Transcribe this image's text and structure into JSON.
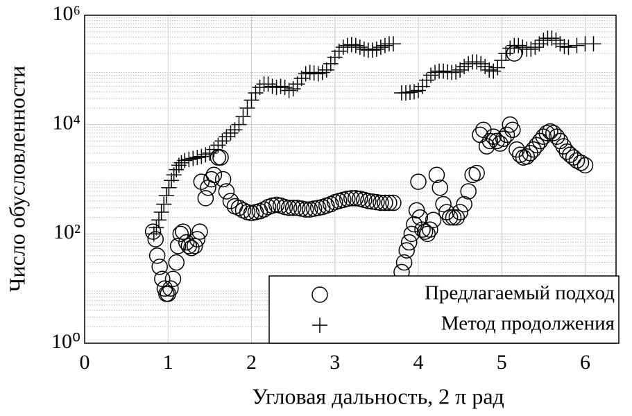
{
  "chart_data": {
    "type": "scatter",
    "xlabel": "Угловая дальность, 2 π рад",
    "ylabel": "Число обусловленности",
    "xlim": [
      0,
      6.37
    ],
    "ylim": [
      1,
      1000000
    ],
    "log_y": true,
    "grid": true,
    "minor_grid": true,
    "xticks": [
      0,
      1,
      2,
      3,
      4,
      5,
      6
    ],
    "yticks": [
      {
        "value": 1,
        "label": "10⁰"
      },
      {
        "value": 100,
        "label": "10²"
      },
      {
        "value": 10000,
        "label": "10⁴"
      },
      {
        "value": 1000000,
        "label": "10⁶"
      }
    ],
    "legend": "lower right",
    "series": [
      {
        "name": "Предлагаемый подход",
        "marker": "circle",
        "color": "#000000",
        "x": [
          0.82,
          0.85,
          0.87,
          0.9,
          0.93,
          0.96,
          0.98,
          1.0,
          1.03,
          1.06,
          1.1,
          1.12,
          1.15,
          1.18,
          1.22,
          1.25,
          1.28,
          1.32,
          1.35,
          1.38,
          1.4,
          1.45,
          1.48,
          1.52,
          1.55,
          1.6,
          1.63,
          1.66,
          1.7,
          1.75,
          1.8,
          1.85,
          1.9,
          1.95,
          2.0,
          2.05,
          2.1,
          2.15,
          2.2,
          2.25,
          2.3,
          2.35,
          2.4,
          2.45,
          2.5,
          2.55,
          2.6,
          2.65,
          2.7,
          2.75,
          2.8,
          2.85,
          2.9,
          2.95,
          3.0,
          3.05,
          3.1,
          3.15,
          3.2,
          3.25,
          3.3,
          3.35,
          3.4,
          3.45,
          3.5,
          3.55,
          3.6,
          3.65,
          3.7,
          3.8,
          3.83,
          3.86,
          3.89,
          3.92,
          3.95,
          3.98,
          4.0,
          4.02,
          4.05,
          4.08,
          4.11,
          4.14,
          4.18,
          4.22,
          4.26,
          4.3,
          4.34,
          4.38,
          4.42,
          4.46,
          4.5,
          4.55,
          4.6,
          4.65,
          4.7,
          4.74,
          4.78,
          4.82,
          4.86,
          4.9,
          4.94,
          4.98,
          5.02,
          5.06,
          5.1,
          5.13,
          5.15,
          5.18,
          5.22,
          5.26,
          5.3,
          5.34,
          5.38,
          5.42,
          5.46,
          5.5,
          5.54,
          5.58,
          5.62,
          5.66,
          5.7,
          5.74,
          5.78,
          5.82,
          5.86,
          5.9,
          5.95,
          6.0
        ],
        "values": [
          110,
          80,
          40,
          25,
          15,
          10,
          8,
          8,
          10,
          15,
          30,
          60,
          100,
          110,
          70,
          60,
          55,
          60,
          80,
          110,
          900,
          450,
          700,
          1000,
          1200,
          2500,
          2500,
          1000,
          600,
          400,
          320,
          300,
          270,
          250,
          240,
          250,
          260,
          280,
          310,
          330,
          340,
          330,
          310,
          300,
          300,
          300,
          290,
          280,
          280,
          290,
          300,
          310,
          330,
          350,
          380,
          400,
          420,
          440,
          450,
          450,
          440,
          420,
          400,
          390,
          380,
          370,
          370,
          370,
          370,
          20,
          30,
          50,
          70,
          100,
          150,
          270,
          900,
          200,
          120,
          110,
          100,
          120,
          180,
          1200,
          700,
          350,
          250,
          200,
          200,
          200,
          250,
          350,
          600,
          1200,
          1300,
          6500,
          8000,
          4000,
          5000,
          6000,
          5000,
          4500,
          5500,
          6500,
          10000,
          8000,
          200000,
          3500,
          2800,
          2500,
          2600,
          3000,
          3500,
          4200,
          5000,
          6000,
          7000,
          7500,
          7000,
          6000,
          5000,
          4000,
          3200,
          2800,
          2500,
          2200,
          2000,
          1800
        ]
      },
      {
        "name": "Метод продолжения",
        "marker": "plus",
        "color": "#000000",
        "x": [
          0.83,
          0.86,
          0.89,
          0.92,
          0.95,
          0.98,
          1.01,
          1.04,
          1.07,
          1.1,
          1.13,
          1.16,
          1.2,
          1.25,
          1.3,
          1.35,
          1.4,
          1.45,
          1.5,
          1.55,
          1.6,
          1.65,
          1.7,
          1.75,
          1.8,
          1.85,
          1.9,
          1.95,
          2.0,
          2.05,
          2.1,
          2.15,
          2.2,
          2.25,
          2.3,
          2.35,
          2.4,
          2.45,
          2.5,
          2.55,
          2.6,
          2.65,
          2.7,
          2.75,
          2.8,
          2.85,
          2.9,
          2.95,
          3.0,
          3.05,
          3.1,
          3.15,
          3.2,
          3.25,
          3.3,
          3.35,
          3.4,
          3.45,
          3.5,
          3.55,
          3.6,
          3.65,
          3.7,
          3.8,
          3.85,
          3.9,
          3.95,
          4.0,
          4.05,
          4.1,
          4.15,
          4.2,
          4.25,
          4.3,
          4.35,
          4.4,
          4.45,
          4.5,
          4.55,
          4.6,
          4.65,
          4.7,
          4.75,
          4.8,
          4.85,
          4.9,
          4.95,
          5.0,
          5.05,
          5.1,
          5.15,
          5.2,
          5.25,
          5.3,
          5.35,
          5.4,
          5.45,
          5.5,
          5.55,
          5.6,
          5.65,
          5.7,
          5.75,
          5.8,
          5.9,
          6.0,
          6.1
        ],
        "values": [
          100,
          130,
          180,
          250,
          350,
          500,
          700,
          950,
          1200,
          1500,
          1800,
          2000,
          2200,
          2300,
          2400,
          2500,
          2600,
          2800,
          3000,
          3500,
          4200,
          5000,
          6000,
          7000,
          8000,
          10000,
          14000,
          20000,
          28000,
          38000,
          48000,
          55000,
          55000,
          50000,
          48000,
          50000,
          48000,
          42000,
          45000,
          55000,
          70000,
          85000,
          90000,
          88000,
          85000,
          90000,
          100000,
          130000,
          170000,
          220000,
          260000,
          280000,
          290000,
          280000,
          260000,
          240000,
          230000,
          230000,
          240000,
          260000,
          280000,
          300000,
          300000,
          38000,
          38000,
          39000,
          40000,
          42000,
          50000,
          65000,
          80000,
          90000,
          95000,
          95000,
          92000,
          90000,
          92000,
          100000,
          115000,
          130000,
          140000,
          140000,
          130000,
          115000,
          100000,
          95000,
          110000,
          150000,
          200000,
          250000,
          280000,
          280000,
          260000,
          240000,
          240000,
          260000,
          300000,
          350000,
          380000,
          380000,
          350000,
          300000,
          270000,
          260000,
          280000,
          300000,
          300000
        ]
      }
    ]
  }
}
